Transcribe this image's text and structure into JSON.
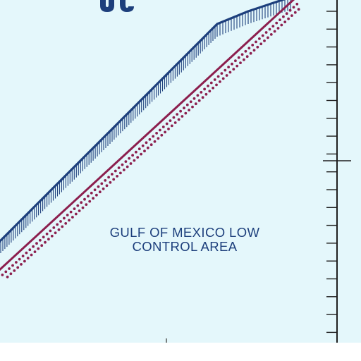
{
  "map": {
    "area_label": {
      "line1": "GULF OF MEXICO LOW",
      "line2": "CONTROL AREA"
    },
    "colors": {
      "water": "#e4f7fb",
      "airspace_boundary": "#1d3f7c",
      "restricted_boundary": "#8c1f4e",
      "neatline": "#1f1f1f",
      "margin": "#ffffff"
    },
    "symbols": {
      "blue_line": "controlled-airspace-boundary-hatched",
      "maroon_line": "boundary-with-dotted-fringe",
      "right_edge": "neatline-with-tick-marks",
      "partial_glyph": "cut-off-lettering-top-left"
    }
  }
}
